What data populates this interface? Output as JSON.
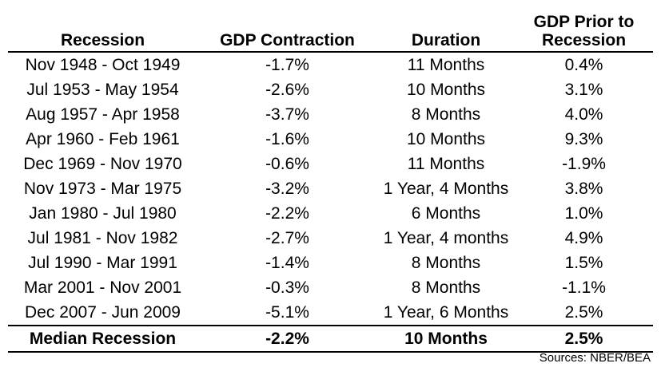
{
  "chart_data": {
    "type": "table",
    "columns": [
      "Recession",
      "GDP Contraction",
      "Duration",
      "GDP Prior to Recession"
    ],
    "rows": [
      [
        "Nov 1948 - Oct 1949",
        "-1.7%",
        "11 Months",
        "0.4%"
      ],
      [
        "Jul 1953 - May 1954",
        "-2.6%",
        "10 Months",
        "3.1%"
      ],
      [
        "Aug 1957 - Apr 1958",
        "-3.7%",
        "8 Months",
        "4.0%"
      ],
      [
        "Apr 1960 - Feb 1961",
        "-1.6%",
        "10 Months",
        "9.3%"
      ],
      [
        "Dec 1969 - Nov 1970",
        "-0.6%",
        "11 Months",
        "-1.9%"
      ],
      [
        "Nov 1973 - Mar 1975",
        "-3.2%",
        "1 Year, 4 Months",
        "3.8%"
      ],
      [
        "Jan 1980 - Jul 1980",
        "-2.2%",
        "6 Months",
        "1.0%"
      ],
      [
        "Jul 1981 - Nov 1982",
        "-2.7%",
        "1 Year, 4 months",
        "4.9%"
      ],
      [
        "Jul 1990 - Mar 1991",
        "-1.4%",
        "8 Months",
        "1.5%"
      ],
      [
        "Mar 2001 - Nov 2001",
        "-0.3%",
        "8 Months",
        "-1.1%"
      ],
      [
        "Dec 2007 - Jun 2009",
        "-5.1%",
        "1 Year, 6 Months",
        "2.5%"
      ]
    ],
    "summary_row": [
      "Median Recession",
      "-2.2%",
      "10 Months",
      "2.5%"
    ]
  },
  "header": {
    "col3_line1": "GDP Prior to",
    "col3_line2": "Recession"
  },
  "source": "Sources: NBER/BEA"
}
